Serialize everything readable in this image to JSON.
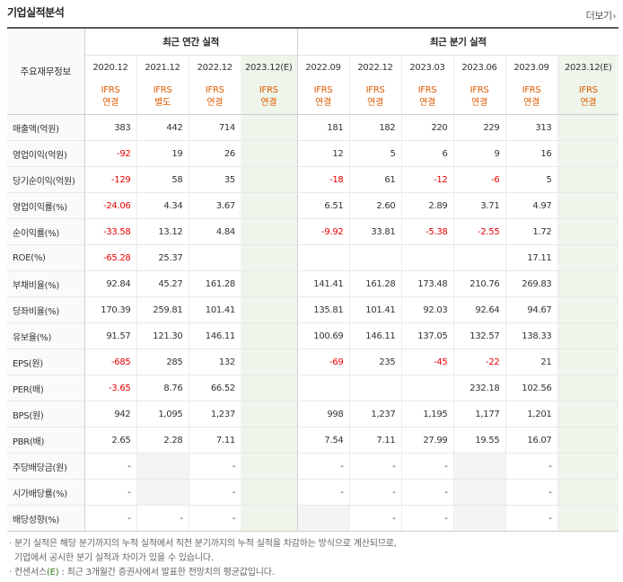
{
  "header": {
    "title": "기업실적분석",
    "more_label": "더보기"
  },
  "table": {
    "corner_label": "주요재무정보",
    "group_annual": "최근 연간 실적",
    "group_quarter": "최근 분기 실적",
    "periods": [
      "2020.12",
      "2021.12",
      "2022.12",
      "2023.12(E)",
      "2022.09",
      "2022.12",
      "2023.03",
      "2023.06",
      "2023.09",
      "2023.12(E)"
    ],
    "bases": [
      [
        "IFRS",
        "연결"
      ],
      [
        "IFRS",
        "별도"
      ],
      [
        "IFRS",
        "연결"
      ],
      [
        "IFRS",
        "연결"
      ],
      [
        "IFRS",
        "연결"
      ],
      [
        "IFRS",
        "연결"
      ],
      [
        "IFRS",
        "연결"
      ],
      [
        "IFRS",
        "연결"
      ],
      [
        "IFRS",
        "연결"
      ],
      [
        "IFRS",
        "연결"
      ]
    ],
    "rows": [
      {
        "label": "매출액(억원)",
        "values": [
          "383",
          "442",
          "714",
          "",
          "181",
          "182",
          "220",
          "229",
          "313",
          ""
        ]
      },
      {
        "label": "영업이익(억원)",
        "values": [
          "-92",
          "19",
          "26",
          "",
          "12",
          "5",
          "6",
          "9",
          "16",
          ""
        ]
      },
      {
        "label": "당기순이익(억원)",
        "values": [
          "-129",
          "58",
          "35",
          "",
          "-18",
          "61",
          "-12",
          "-6",
          "5",
          ""
        ]
      },
      {
        "label": "영업이익률(%)",
        "values": [
          "-24.06",
          "4.34",
          "3.67",
          "",
          "6.51",
          "2.60",
          "2.89",
          "3.71",
          "4.97",
          ""
        ]
      },
      {
        "label": "순이익률(%)",
        "values": [
          "-33.58",
          "13.12",
          "4.84",
          "",
          "-9.92",
          "33.81",
          "-5.38",
          "-2.55",
          "1.72",
          ""
        ]
      },
      {
        "label": "ROE(%)",
        "values": [
          "-65.28",
          "25.37",
          "",
          "",
          "",
          "",
          "",
          "",
          "17.11",
          ""
        ]
      },
      {
        "label": "부채비율(%)",
        "values": [
          "92.84",
          "45.27",
          "161.28",
          "",
          "141.41",
          "161.28",
          "173.48",
          "210.76",
          "269.83",
          ""
        ]
      },
      {
        "label": "당좌비율(%)",
        "values": [
          "170.39",
          "259.81",
          "101.41",
          "",
          "135.81",
          "101.41",
          "92.03",
          "92.64",
          "94.67",
          ""
        ]
      },
      {
        "label": "유보율(%)",
        "values": [
          "91.57",
          "121.30",
          "146.11",
          "",
          "100.69",
          "146.11",
          "137.05",
          "132.57",
          "138.33",
          ""
        ]
      },
      {
        "label": "EPS(원)",
        "values": [
          "-685",
          "285",
          "132",
          "",
          "-69",
          "235",
          "-45",
          "-22",
          "21",
          ""
        ]
      },
      {
        "label": "PER(배)",
        "values": [
          "-3.65",
          "8.76",
          "66.52",
          "",
          "",
          "",
          "",
          "232.18",
          "102.56",
          ""
        ]
      },
      {
        "label": "BPS(원)",
        "values": [
          "942",
          "1,095",
          "1,237",
          "",
          "998",
          "1,237",
          "1,195",
          "1,177",
          "1,201",
          ""
        ]
      },
      {
        "label": "PBR(배)",
        "values": [
          "2.65",
          "2.28",
          "7.11",
          "",
          "7.54",
          "7.11",
          "27.99",
          "19.55",
          "16.07",
          ""
        ]
      },
      {
        "label": "주당배당금(원)",
        "values": [
          "-",
          "",
          "-",
          "",
          "-",
          "-",
          "-",
          "",
          "-",
          ""
        ]
      },
      {
        "label": "시가배당률(%)",
        "values": [
          "-",
          "",
          "-",
          "",
          "-",
          "-",
          "-",
          "",
          "-",
          ""
        ]
      },
      {
        "label": "배당성향(%)",
        "values": [
          "-",
          "-",
          "-",
          "",
          "",
          "-",
          "-",
          "",
          "-",
          ""
        ]
      }
    ]
  },
  "notes": {
    "line1": "· 분기 실적은 해당 분기까지의 누적 실적에서 직전 분기까지의 누적 실적을 차감하는 방식으로 계산되므로,",
    "line2": "기업에서 공시한 분기 실적과 차이가 있을 수 있습니다.",
    "line3a": "· 컨센서스",
    "line3e": "(E)",
    "line3b": ": 최근 3개월간 증권사에서 발표한 전망치의 평균값입니다."
  }
}
